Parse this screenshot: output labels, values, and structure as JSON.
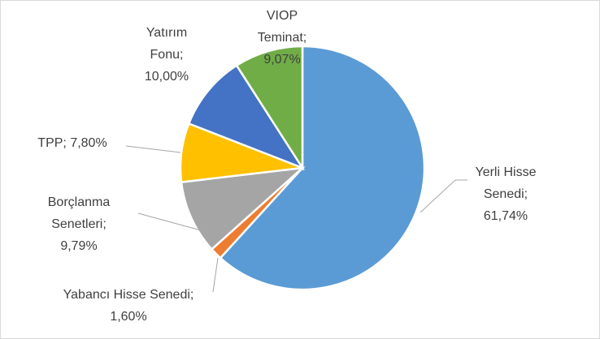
{
  "chart_data": {
    "type": "pie",
    "categories": [
      "Yerli Hisse Senedi;",
      "Yabancı Hisse Senedi;",
      "Borçlanma Senetleri;",
      "TPP;",
      "Yatırım Fonu;",
      "VIOP Teminat;"
    ],
    "values": [
      61.74,
      1.6,
      9.79,
      7.8,
      10.0,
      9.07
    ],
    "value_labels": [
      "61,74%",
      "1,60%",
      "9,79%",
      "7,80%",
      "10,00%",
      "9,07%"
    ],
    "colors": [
      "#5b9bd5",
      "#ed7d31",
      "#a5a5a5",
      "#ffc000",
      "#4472c4",
      "#70ad47"
    ]
  }
}
